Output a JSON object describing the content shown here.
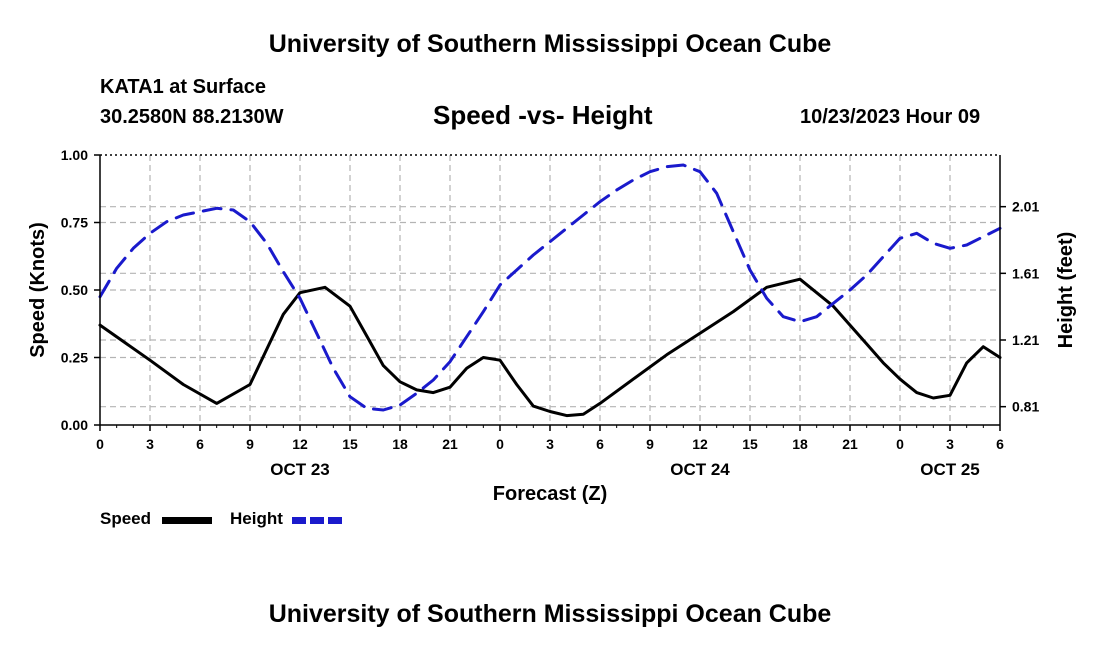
{
  "header": {
    "title": "University of Southern Mississippi Ocean Cube",
    "station": "KATA1 at Surface",
    "coords": "30.2580N  88.2130W",
    "chart_title": "Speed -vs- Height",
    "datetime": "10/23/2023 Hour 09"
  },
  "footer": {
    "title": "University of Southern Mississippi Ocean Cube"
  },
  "legend": {
    "speed_label": "Speed",
    "height_label": "Height"
  },
  "colors": {
    "speed": "#000000",
    "height": "#1a1acc",
    "grid": "#b4b4b4"
  },
  "chart_data": {
    "type": "line",
    "title": "Speed -vs- Height",
    "xlabel": "Forecast (Z)",
    "ylabel": "Speed (Knots)",
    "y2label": "Height (feet)",
    "xlim": [
      0,
      54
    ],
    "x_ticks": [
      0,
      3,
      6,
      9,
      12,
      15,
      18,
      21,
      24,
      27,
      30,
      33,
      36,
      39,
      42,
      45,
      48,
      51,
      54
    ],
    "x_tick_labels": [
      "0",
      "3",
      "6",
      "9",
      "12",
      "15",
      "18",
      "21",
      "0",
      "3",
      "6",
      "9",
      "12",
      "15",
      "18",
      "21",
      "0",
      "3",
      "6"
    ],
    "date_labels": [
      {
        "x": 12,
        "label": "OCT 23"
      },
      {
        "x": 36,
        "label": "OCT 24"
      },
      {
        "x": 51,
        "label": "OCT 25"
      }
    ],
    "ylim": [
      0,
      1.0
    ],
    "y_ticks": [
      0,
      0.25,
      0.5,
      0.75,
      1.0
    ],
    "y_tick_labels": [
      "0.00",
      "0.25",
      "0.50",
      "0.75",
      "1.00"
    ],
    "y2lim": [
      0.7,
      2.32
    ],
    "y2_ticks": [
      0.81,
      1.21,
      1.61,
      2.01
    ],
    "y2_tick_labels": [
      "0.81",
      "1.21",
      "1.61",
      "2.01"
    ],
    "grid": true,
    "legend_position": "bottom-left",
    "series": [
      {
        "name": "Speed",
        "axis": "left",
        "style": "solid",
        "x": [
          0,
          3,
          5,
          7,
          9,
          11,
          12,
          13.5,
          15,
          16,
          17,
          18,
          19,
          20,
          21,
          22,
          23,
          24,
          25,
          26,
          27,
          28,
          29,
          30,
          32,
          34,
          36,
          38,
          40,
          42,
          44,
          45,
          46,
          47,
          48,
          49,
          50,
          51,
          52,
          53,
          54
        ],
        "values": [
          0.37,
          0.24,
          0.15,
          0.08,
          0.15,
          0.41,
          0.49,
          0.51,
          0.44,
          0.33,
          0.22,
          0.16,
          0.13,
          0.12,
          0.14,
          0.21,
          0.25,
          0.24,
          0.15,
          0.07,
          0.05,
          0.035,
          0.04,
          0.08,
          0.17,
          0.26,
          0.34,
          0.42,
          0.51,
          0.54,
          0.44,
          0.37,
          0.3,
          0.23,
          0.17,
          0.12,
          0.1,
          0.11,
          0.23,
          0.29,
          0.25
        ]
      },
      {
        "name": "Height",
        "axis": "right",
        "style": "dashed",
        "x": [
          0,
          1,
          2,
          3,
          4,
          5,
          6,
          7,
          8,
          9,
          10,
          11,
          12,
          13,
          14,
          15,
          16,
          17,
          18,
          19,
          20,
          21,
          22,
          23,
          24,
          25,
          26,
          27,
          28,
          29,
          30,
          31,
          32,
          33,
          34,
          35,
          36,
          37,
          38,
          39,
          40,
          41,
          42,
          43,
          44,
          45,
          46,
          47,
          48,
          49,
          50,
          51,
          52,
          53,
          54
        ],
        "values": [
          1.47,
          1.64,
          1.76,
          1.85,
          1.92,
          1.96,
          1.98,
          2.0,
          1.99,
          1.92,
          1.79,
          1.62,
          1.46,
          1.25,
          1.04,
          0.87,
          0.8,
          0.79,
          0.82,
          0.89,
          0.97,
          1.08,
          1.23,
          1.38,
          1.54,
          1.63,
          1.72,
          1.8,
          1.88,
          1.96,
          2.04,
          2.11,
          2.17,
          2.22,
          2.25,
          2.26,
          2.22,
          2.09,
          1.86,
          1.63,
          1.46,
          1.35,
          1.32,
          1.35,
          1.43,
          1.51,
          1.6,
          1.71,
          1.82,
          1.85,
          1.79,
          1.76,
          1.78,
          1.83,
          1.88
        ]
      }
    ]
  }
}
